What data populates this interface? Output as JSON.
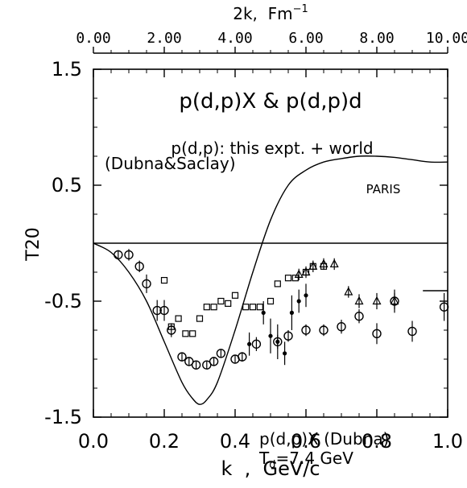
{
  "chart_data": {
    "type": "scatter",
    "title": "p(d,p)X & p(d,p)d",
    "annotations": {
      "line1": "p(d,p): this expt. + world",
      "line2": "(Dubna&Saclay)",
      "paris": "PARIS",
      "dubna1": "p(d,p)X (Dubna)",
      "dubna2_main": "T",
      "dubna2_sub": "d",
      "dubna2_rest": "=7.4 GeV"
    },
    "xlabel": "k  ,  GeV/c",
    "ylabel": "T20",
    "top_axis_label": "2k,  Fm",
    "top_axis_exp": "−1",
    "xlim": [
      0.0,
      1.0
    ],
    "ylim": [
      -1.5,
      1.5
    ],
    "top_lim": [
      0.0,
      10.0
    ],
    "x_ticks": [
      "0.0",
      "0.2",
      "0.4",
      "0.6",
      "0.8",
      "1.0"
    ],
    "y_ticks": [
      "1.5",
      "0.5",
      "-0.5",
      "-1.5"
    ],
    "top_ticks": [
      "0.00",
      "2.00",
      "4.00",
      "6.00",
      "8.00",
      "10.00"
    ],
    "series": [
      {
        "name": "PARIS",
        "style": "line",
        "x": [
          0.0,
          0.05,
          0.1,
          0.15,
          0.2,
          0.25,
          0.28,
          0.3,
          0.32,
          0.35,
          0.4,
          0.45,
          0.5,
          0.55,
          0.6,
          0.65,
          0.7,
          0.75,
          0.8,
          0.85,
          0.9,
          0.95,
          1.0
        ],
        "y": [
          0.0,
          -0.08,
          -0.25,
          -0.5,
          -0.85,
          -1.2,
          -1.34,
          -1.39,
          -1.35,
          -1.2,
          -0.75,
          -0.25,
          0.2,
          0.5,
          0.63,
          0.7,
          0.73,
          0.75,
          0.75,
          0.74,
          0.72,
          0.7,
          0.7
        ]
      },
      {
        "name": "zero",
        "style": "line",
        "x": [
          0.0,
          1.0
        ],
        "y": [
          0.0,
          0.0
        ]
      },
      {
        "name": "short",
        "style": "line",
        "x": [
          0.93,
          1.0
        ],
        "y": [
          -0.41,
          -0.41
        ]
      },
      {
        "name": "circles",
        "style": "circle",
        "x": [
          0.07,
          0.1,
          0.13,
          0.15,
          0.18,
          0.2,
          0.22,
          0.25,
          0.27,
          0.29,
          0.32,
          0.34,
          0.36,
          0.4,
          0.42,
          0.46,
          0.52,
          0.55,
          0.6,
          0.65,
          0.7,
          0.75,
          0.8,
          0.85,
          0.9,
          0.99
        ],
        "y": [
          -0.1,
          -0.1,
          -0.2,
          -0.35,
          -0.58,
          -0.58,
          -0.75,
          -0.98,
          -1.02,
          -1.05,
          -1.05,
          -1.02,
          -0.95,
          -1.0,
          -0.98,
          -0.87,
          -0.85,
          -0.8,
          -0.75,
          -0.75,
          -0.72,
          -0.63,
          -0.78,
          -0.5,
          -0.76,
          -0.55
        ],
        "yerr": [
          0.04,
          0.05,
          0.05,
          0.08,
          0.09,
          0.09,
          0.06,
          0.03,
          0.03,
          0.03,
          0.03,
          0.03,
          0.03,
          0.03,
          0.04,
          0.06,
          0.06,
          0.05,
          0.05,
          0.05,
          0.06,
          0.06,
          0.09,
          0.1,
          0.09,
          0.12
        ]
      },
      {
        "name": "squares",
        "style": "square",
        "x": [
          0.2,
          0.22,
          0.24,
          0.26,
          0.28,
          0.3,
          0.32,
          0.34,
          0.36,
          0.38,
          0.4,
          0.43,
          0.45,
          0.47,
          0.5,
          0.52,
          0.55,
          0.57,
          0.6,
          0.62,
          0.65
        ],
        "y": [
          -0.32,
          -0.72,
          -0.65,
          -0.78,
          -0.78,
          -0.65,
          -0.55,
          -0.55,
          -0.5,
          -0.52,
          -0.45,
          -0.55,
          -0.55,
          -0.55,
          -0.5,
          -0.35,
          -0.3,
          -0.3,
          -0.25,
          -0.2,
          -0.2
        ]
      },
      {
        "name": "triangles",
        "style": "triangle",
        "x": [
          0.58,
          0.6,
          0.62,
          0.65,
          0.68,
          0.72,
          0.75,
          0.8,
          0.85
        ],
        "y": [
          -0.27,
          -0.25,
          -0.2,
          -0.18,
          -0.18,
          -0.42,
          -0.5,
          -0.5,
          -0.5
        ],
        "yerr": [
          0.05,
          0.05,
          0.05,
          0.05,
          0.05,
          0.05,
          0.06,
          0.07,
          0.07
        ]
      },
      {
        "name": "dots",
        "style": "dot",
        "x": [
          0.44,
          0.48,
          0.5,
          0.52,
          0.54,
          0.56,
          0.58,
          0.6
        ],
        "y": [
          -0.87,
          -0.6,
          -0.8,
          -0.85,
          -0.95,
          -0.6,
          -0.5,
          -0.45
        ],
        "yerr": [
          0.1,
          0.1,
          0.15,
          0.15,
          0.1,
          0.15,
          0.1,
          0.1
        ]
      }
    ]
  }
}
